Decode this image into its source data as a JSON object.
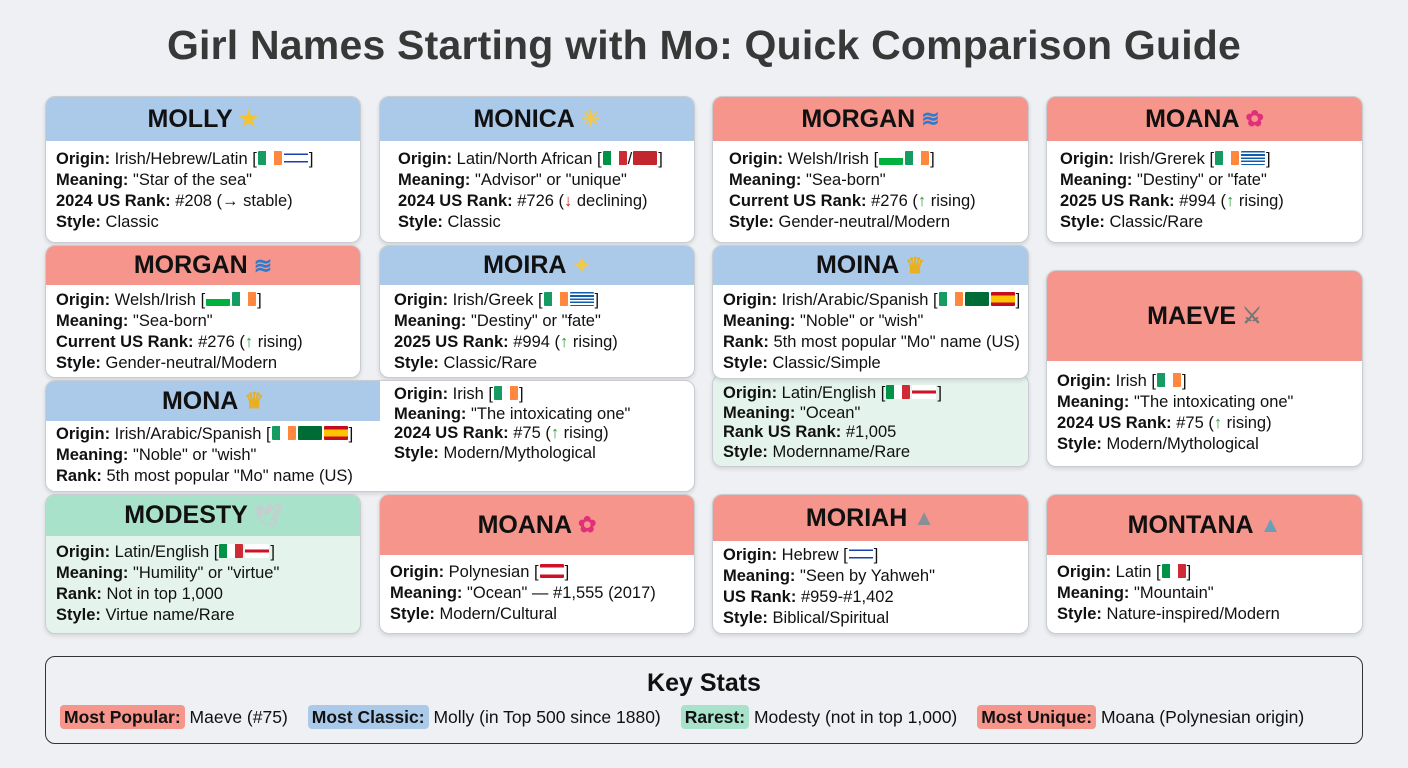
{
  "title": "Girl Names Starting with Mo: Quick Comparison Guide",
  "colors": {
    "blue": "#abc9e9",
    "red": "#f5958b",
    "green": "#a8e2ca",
    "green_body": "#e4f4ec",
    "rising": "#2a9a3a",
    "declining": "#d02020"
  },
  "cards": [
    {
      "id": "molly",
      "name": "MOLLY",
      "icon": "star-icon",
      "glyph": "★",
      "glyph_color": "#f4c430",
      "theme": "blue",
      "rows": [
        {
          "label": "Origin:",
          "value": "Irish/Hebrew/Latin",
          "flags": [
            "IE",
            "IL"
          ]
        },
        {
          "label": "Meaning:",
          "value": "\"Star of the sea\""
        },
        {
          "label": "2024 US Rank:",
          "value": "#208 (→ stable)"
        },
        {
          "label": "Style:",
          "value": "Classic"
        }
      ]
    },
    {
      "id": "monica",
      "name": "MONICA",
      "icon": "lightbulb-icon",
      "glyph": "☀",
      "glyph_color": "#f2c94c",
      "theme": "blue",
      "rows": [
        {
          "label": "Origin:",
          "value": "Latin/North African",
          "flags": [
            "IT",
            "/",
            "MA"
          ]
        },
        {
          "label": "Meaning:",
          "value": "\"Advisor\" or \"unique\""
        },
        {
          "label": "2024 US Rank:",
          "value": "#726 (↓ declining)"
        },
        {
          "label": "Style:",
          "value": "Classic"
        }
      ]
    },
    {
      "id": "morgan",
      "name": "MORGAN",
      "icon": "wave-icon",
      "glyph": "≋",
      "glyph_color": "#2b7bd0",
      "theme": "red",
      "rows": [
        {
          "label": "Origin:",
          "value": "Welsh/Irish",
          "flags": [
            "WLS",
            "IE"
          ]
        },
        {
          "label": "Meaning:",
          "value": "\"Sea-born\""
        },
        {
          "label": "Current US Rank:",
          "value": "#276 (↑ rising)"
        },
        {
          "label": "Style:",
          "value": "Gender-neutral/Modern"
        }
      ]
    },
    {
      "id": "moana",
      "name": "MOANA",
      "icon": "hibiscus-icon",
      "glyph": "✿",
      "glyph_color": "#e0307a",
      "theme": "red",
      "rows": [
        {
          "label": "Origin:",
          "value": "Irish/Grerek",
          "flags": [
            "IE",
            "GR"
          ]
        },
        {
          "label": "Meaning:",
          "value": "\"Destiny\" or \"fate\""
        },
        {
          "label": "2025 US Rank:",
          "value": "#994 (↑ rising)"
        },
        {
          "label": "Style:",
          "value": "Classic/Rare"
        }
      ]
    },
    {
      "id": "morgan-2",
      "name": "MORGAN",
      "icon": "wave-icon",
      "glyph": "≋",
      "glyph_color": "#2b7bd0",
      "theme": "red",
      "rows": [
        {
          "label": "Origin:",
          "value": "Welsh/Irish",
          "flags": [
            "WLS",
            "IE"
          ]
        },
        {
          "label": "Meaning:",
          "value": "\"Sea-born\""
        },
        {
          "label": "Current US Rank:",
          "value": "#276 (↑ rising)"
        },
        {
          "label": "Style:",
          "value": "Gender-neutral/Modern"
        }
      ]
    },
    {
      "id": "moira",
      "name": "MOIRA",
      "icon": "sparkles-icon",
      "glyph": "✦",
      "glyph_color": "#f2c94c",
      "theme": "blue",
      "rows": [
        {
          "label": "Origin:",
          "value": "Irish/Greek",
          "flags": [
            "IE",
            "GR"
          ]
        },
        {
          "label": "Meaning:",
          "value": "\"Destiny\" or \"fate\""
        },
        {
          "label": "2025 US Rank:",
          "value": "#994 (↑ rising)"
        },
        {
          "label": "Style:",
          "value": "Classic/Rare"
        }
      ]
    },
    {
      "id": "moina",
      "name": "MOINA",
      "icon": "crown-icon",
      "glyph": "♛",
      "glyph_color": "#e8b020",
      "theme": "blue",
      "rows": [
        {
          "label": "Origin:",
          "value": "Irish/Arabic/Spanish",
          "flags": [
            "IE",
            "SA",
            "ES"
          ]
        },
        {
          "label": "Meaning:",
          "value": "\"Noble\" or \"wish\""
        },
        {
          "label": "Rank:",
          "value": "5th most popular \"Mo\" name (US)"
        },
        {
          "label": "Style:",
          "value": "Classic/Simple"
        }
      ],
      "extra_rows": [
        {
          "label": "Origin:",
          "value": "Latin/English",
          "flags": [
            "IT",
            "EN"
          ]
        },
        {
          "label": "Meaning:",
          "value": "\"Ocean\""
        },
        {
          "label": "Rank US Rank:",
          "value": "#1,005"
        },
        {
          "label": "Style:",
          "value": "Modernname/Rare"
        }
      ]
    },
    {
      "id": "maeve",
      "name": "MAEVE",
      "icon": "crossed-swords-icon",
      "glyph": "⚔",
      "glyph_color": "#777",
      "theme": "red",
      "rows": [
        {
          "label": "Origin:",
          "value": "Irish",
          "flags": [
            "IE"
          ]
        },
        {
          "label": "Meaning:",
          "value": "\"The intoxicating one\""
        },
        {
          "label": "2024 US Rank:",
          "value": "#75 (↑ rising)"
        },
        {
          "label": "Style:",
          "value": "Modern/Mythological"
        }
      ]
    },
    {
      "id": "mona",
      "name": "MONA",
      "icon": "crown-icon",
      "glyph": "♛",
      "glyph_color": "#e8b020",
      "theme": "blue",
      "rows": [
        {
          "label": "Origin:",
          "value": "Irish/Arabic/Spanish",
          "flags": [
            "IE",
            "SA",
            "ES"
          ]
        },
        {
          "label": "Meaning:",
          "value": "\"Noble\" or \"wish\""
        },
        {
          "label": "Rank:",
          "value": "5th most popular \"Mo\" name (US)"
        }
      ],
      "extra_rows": [
        {
          "label": "Origin:",
          "value": "Irish",
          "flags": [
            "IE"
          ]
        },
        {
          "label": "Meaning:",
          "value": "\"The intoxicating one\""
        },
        {
          "label": "2024 US Rank:",
          "value": "#75 (↑ rising)"
        },
        {
          "label": "Style:",
          "value": "Modern/Mythological"
        }
      ]
    },
    {
      "id": "modesty",
      "name": "MODESTY",
      "icon": "dove-icon",
      "glyph": "🕊",
      "glyph_color": "#c8ccd0",
      "theme": "green",
      "rows": [
        {
          "label": "Origin:",
          "value": "Latin/English",
          "flags": [
            "IT",
            "EN"
          ]
        },
        {
          "label": "Meaning:",
          "value": "\"Humility\" or \"virtue\""
        },
        {
          "label": "Rank:",
          "value": "Not in top 1,000"
        },
        {
          "label": "Style:",
          "value": "Virtue name/Rare"
        }
      ]
    },
    {
      "id": "moana-2",
      "name": "MOANA",
      "icon": "hibiscus-icon",
      "glyph": "✿",
      "glyph_color": "#e0307a",
      "theme": "red",
      "rows": [
        {
          "label": "Origin:",
          "value": "Polynesian",
          "flags": [
            "PF"
          ]
        },
        {
          "label": "Meaning:",
          "value": "\"Ocean\" — #1,555 (2017)"
        },
        {
          "label": "Style:",
          "value": "Modern/Cultural"
        }
      ]
    },
    {
      "id": "moriah",
      "name": "MORIAH",
      "icon": "mountain-icon",
      "glyph": "▲",
      "glyph_color": "#8a8f96",
      "theme": "red",
      "rows": [
        {
          "label": "Origin:",
          "value": "Hebrew",
          "flags": [
            "IL"
          ]
        },
        {
          "label": "Meaning:",
          "value": "\"Seen by Yahweh\""
        },
        {
          "label": "US Rank:",
          "value": "#959-#1,402"
        },
        {
          "label": "Style:",
          "value": "Biblical/Spiritual"
        }
      ]
    },
    {
      "id": "montana",
      "name": "MONTANA",
      "icon": "snow-capped-mountain-icon",
      "glyph": "▲",
      "glyph_color": "#6a9fb8",
      "theme": "red",
      "rows": [
        {
          "label": "Origin:",
          "value": "Latin",
          "flags": [
            "IT"
          ]
        },
        {
          "label": "Meaning:",
          "value": "\"Mountain\""
        },
        {
          "label": "Style:",
          "value": "Nature-inspired/Modern"
        }
      ]
    }
  ],
  "key_stats": {
    "title": "Key Stats",
    "items": [
      {
        "label": "Most Popular:",
        "value": "Maeve (#75)",
        "theme": "red"
      },
      {
        "label": "Most Classic:",
        "value": "Molly (in Top 500 since 1880)",
        "theme": "blue"
      },
      {
        "label": "Rarest:",
        "value": "Modesty (not in top 1,000)",
        "theme": "green"
      },
      {
        "label": "Most Unique:",
        "value": "Moana (Polynesian origin)",
        "theme": "red"
      }
    ]
  }
}
